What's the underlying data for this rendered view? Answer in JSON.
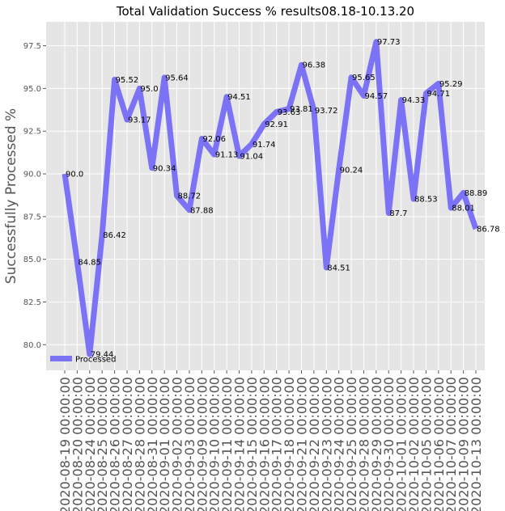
{
  "chart_data": {
    "type": "line",
    "title": "Total Validation Success % results08.18-10.13.20",
    "xlabel": "",
    "ylabel": "Successfully Processed %",
    "x": [
      "2020-08-19 00:00:00",
      "2020-08-20 00:00:00",
      "2020-08-24 00:00:00",
      "2020-08-25 00:00:00",
      "2020-08-26 00:00:00",
      "2020-08-27 00:00:00",
      "2020-08-28 00:00:00",
      "2020-08-31 00:00:00",
      "2020-09-01 00:00:00",
      "2020-09-02 00:00:00",
      "2020-09-03 00:00:00",
      "2020-09-09 00:00:00",
      "2020-09-10 00:00:00",
      "2020-09-11 00:00:00",
      "2020-09-14 00:00:00",
      "2020-09-15 00:00:00",
      "2020-09-16 00:00:00",
      "2020-09-17 00:00:00",
      "2020-09-18 00:00:00",
      "2020-09-21 00:00:00",
      "2020-09-22 00:00:00",
      "2020-09-23 00:00:00",
      "2020-09-24 00:00:00",
      "2020-09-25 00:00:00",
      "2020-09-28 00:00:00",
      "2020-09-29 00:00:00",
      "2020-09-30 00:00:00",
      "2020-10-01 00:00:00",
      "2020-10-02 00:00:00",
      "2020-10-05 00:00:00",
      "2020-10-06 00:00:00",
      "2020-10-07 00:00:00",
      "2020-10-09 00:00:00",
      "2020-10-13 00:00:00"
    ],
    "series": [
      {
        "name": "Processed",
        "color": "#7b72f6",
        "values": [
          90.0,
          84.85,
          79.44,
          86.42,
          95.52,
          93.17,
          95.0,
          90.34,
          95.64,
          88.72,
          87.88,
          92.06,
          91.13,
          94.51,
          91.04,
          91.74,
          92.91,
          93.63,
          93.81,
          96.38,
          93.72,
          84.51,
          90.24,
          95.65,
          94.57,
          97.73,
          87.7,
          94.33,
          88.53,
          94.71,
          95.29,
          88.01,
          88.89,
          86.78
        ],
        "labels": [
          "90.0",
          "84.85",
          "79.44",
          "86.42",
          "95.52",
          "93.17",
          "95.0",
          "90.34",
          "95.64",
          "88.72",
          "87.88",
          "92.06",
          "91.13",
          "94.51",
          "91.04",
          "91.74",
          "92.91",
          "93.63",
          "93.81",
          "96.38",
          "93.72",
          "84.51",
          "90.24",
          "95.65",
          "94.57",
          "97.73",
          "87.7",
          "94.33",
          "88.53",
          "94.71",
          "95.29",
          "88.01",
          "88.89",
          "86.78"
        ]
      }
    ],
    "yticks": [
      "80.0",
      "82.5",
      "85.0",
      "87.5",
      "90.0",
      "92.5",
      "95.0",
      "97.5"
    ],
    "ylim": [
      78.5,
      98.9
    ],
    "grid": true,
    "legend": "lower-left",
    "background": "#e5e5e5",
    "grid_color": "#ffffff"
  }
}
